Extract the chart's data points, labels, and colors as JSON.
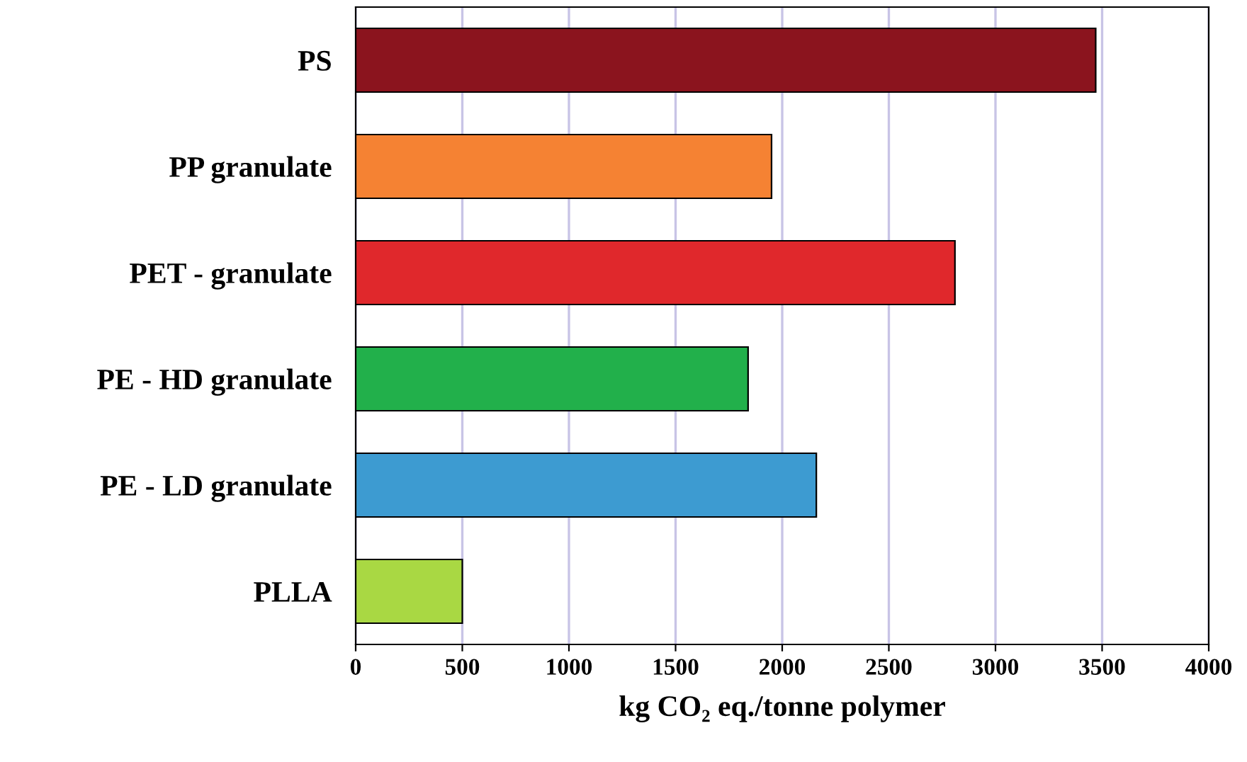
{
  "chart_data": {
    "type": "bar",
    "orientation": "horizontal",
    "xlabel": "kg CO₂ eq./tonne polymer",
    "categories": [
      "PS",
      "PP granulate",
      "PET - granulate",
      "PE - HD granulate",
      "PE - LD granulate",
      "PLLA"
    ],
    "values": [
      3470,
      1950,
      2810,
      1840,
      2160,
      500
    ],
    "colors": [
      "#8b141e",
      "#f58233",
      "#e0282c",
      "#22b04b",
      "#3d9bd1",
      "#a9d843"
    ],
    "xlim": [
      0,
      4000
    ],
    "xticks": [
      0,
      500,
      1000,
      1500,
      2000,
      2500,
      3000,
      3500,
      4000
    ],
    "grid": "x"
  }
}
